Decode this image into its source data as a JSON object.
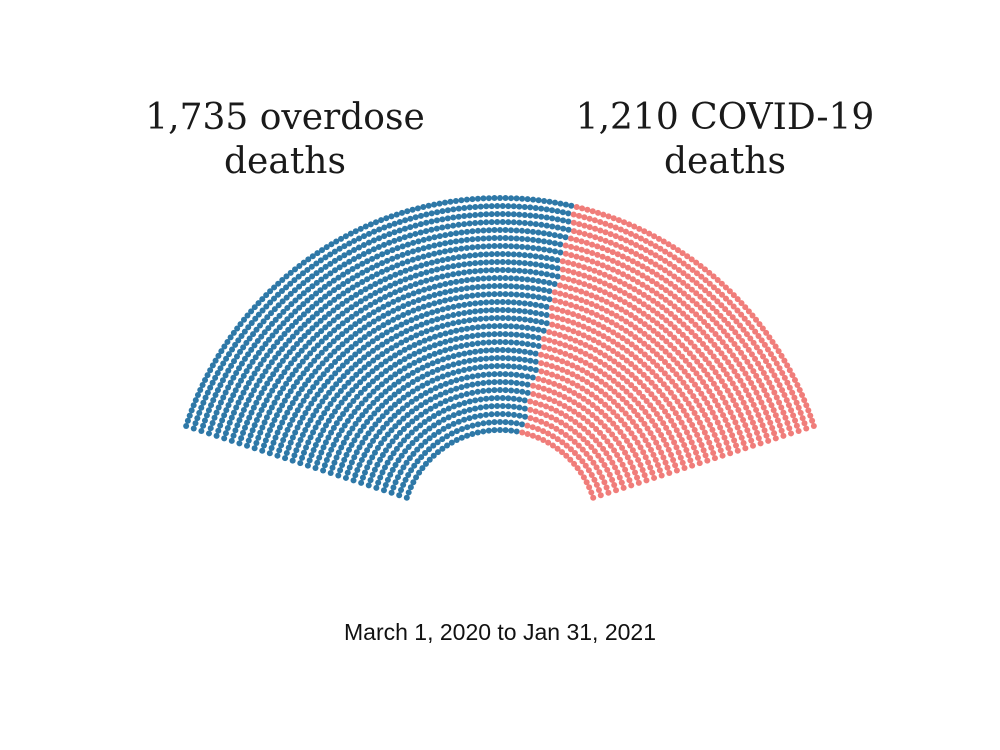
{
  "chart_data": {
    "type": "unit-semicircle",
    "series": [
      {
        "name": "overdose deaths",
        "value": 1735,
        "label_number": "1,735 overdose",
        "label_rest": "deaths",
        "color": "#2e78a7"
      },
      {
        "name": "COVID-19 deaths",
        "value": 1210,
        "label_number": "1,210 COVID-19",
        "label_rest": "deaths",
        "color": "#f07d7a"
      }
    ],
    "date_range": "March 1, 2020 to Jan 31, 2021"
  }
}
